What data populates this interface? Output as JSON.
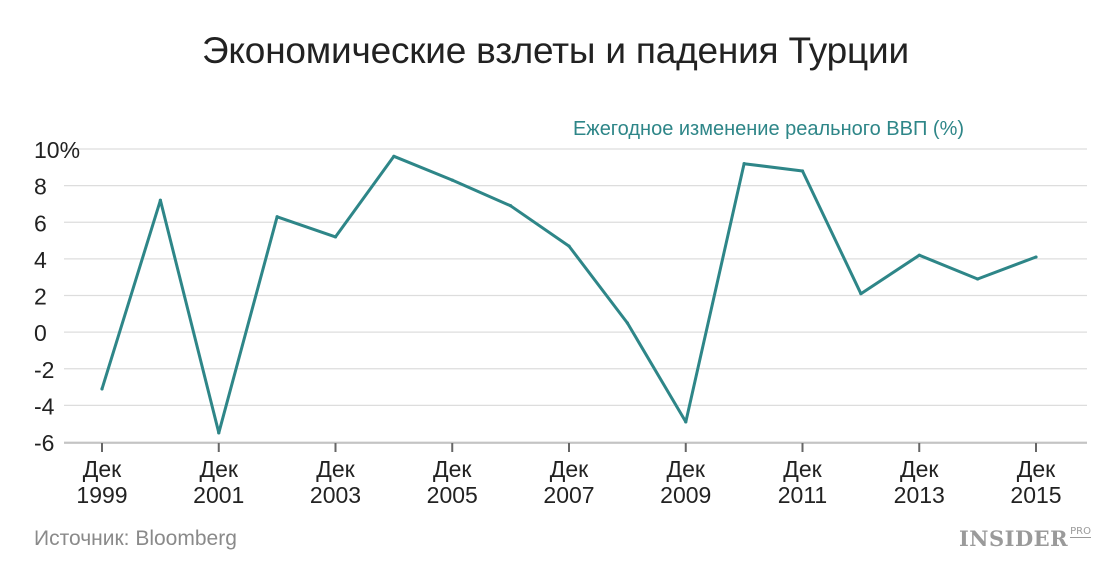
{
  "title": "Экономические взлеты и падения Турции",
  "source": "Источник: Bloomberg",
  "brand": {
    "main": "INSIDER",
    "sub": "PRO"
  },
  "colors": {
    "line": "#2e8688",
    "subtitle": "#2e8688",
    "grid": "#dddddd",
    "text": "#222222",
    "muted": "#8a8a8a"
  },
  "chart_data": {
    "type": "line",
    "subtitle": "Ежегодное изменение реального ВВП (%)",
    "x": [
      1999,
      2000,
      2001,
      2002,
      2003,
      2004,
      2005,
      2006,
      2007,
      2008,
      2009,
      2010,
      2011,
      2012,
      2013,
      2014,
      2015
    ],
    "series": [
      {
        "values": [
          -3.1,
          7.2,
          -5.5,
          6.3,
          5.2,
          9.6,
          8.3,
          6.9,
          4.7,
          0.5,
          -4.9,
          9.2,
          8.8,
          2.1,
          4.2,
          2.9,
          4.1
        ]
      }
    ],
    "ylim": [
      -6,
      10
    ],
    "yticks": [
      10,
      8,
      6,
      4,
      2,
      0,
      -2,
      -4,
      -6
    ],
    "ytick_labels": [
      "10%",
      "8",
      "6",
      "4",
      "2",
      "0",
      "-2",
      "-4",
      "-6"
    ],
    "xticks": [
      {
        "year": 1999,
        "line1": "Дек",
        "line2": "1999"
      },
      {
        "year": 2001,
        "line1": "Дек",
        "line2": "2001"
      },
      {
        "year": 2003,
        "line1": "Дек",
        "line2": "2003"
      },
      {
        "year": 2005,
        "line1": "Дек",
        "line2": "2005"
      },
      {
        "year": 2007,
        "line1": "Дек",
        "line2": "2007"
      },
      {
        "year": 2009,
        "line1": "Дек",
        "line2": "2009"
      },
      {
        "year": 2011,
        "line1": "Дек",
        "line2": "2011"
      },
      {
        "year": 2013,
        "line1": "Дек",
        "line2": "2013"
      },
      {
        "year": 2015,
        "line1": "Дек",
        "line2": "2015"
      }
    ],
    "grid": true
  }
}
